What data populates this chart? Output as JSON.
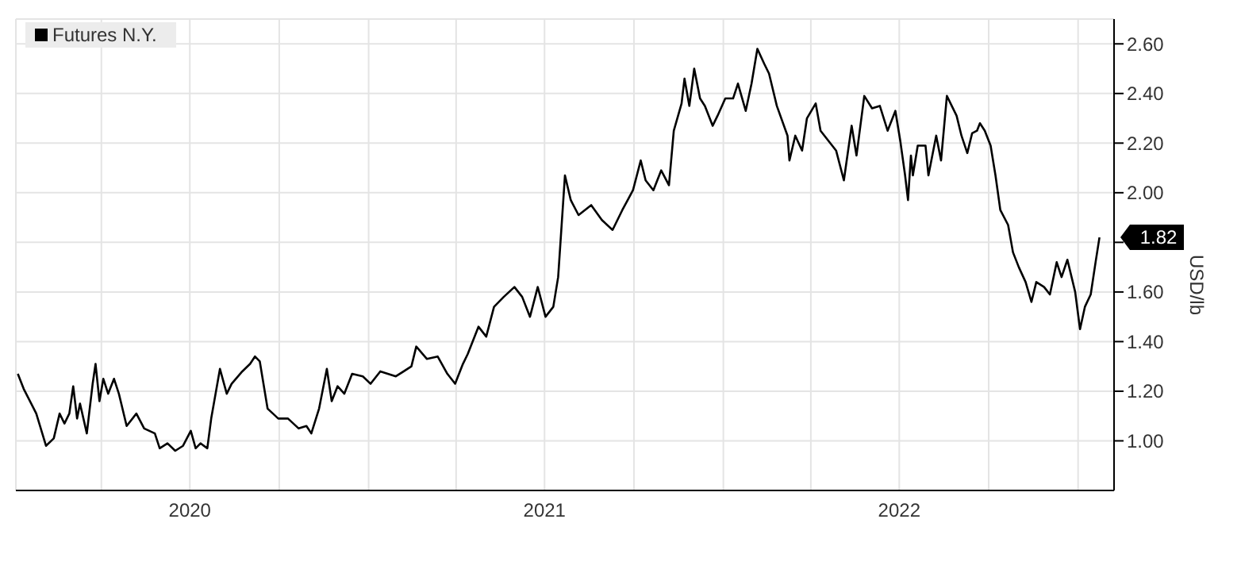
{
  "chart_data": {
    "type": "line",
    "ylabel": "USD/lb",
    "legend": "top left",
    "grid": true,
    "xlim": [
      "2020-01-04",
      "2023-02-07"
    ],
    "xticks": [
      {
        "value": "2020-04-01",
        "label": null
      },
      {
        "value": "2020-07-01",
        "label": "2020"
      },
      {
        "value": "2020-10-01",
        "label": null
      },
      {
        "value": "2021-01-01",
        "label": null
      },
      {
        "value": "2021-04-01",
        "label": null
      },
      {
        "value": "2021-07-01",
        "label": "2021"
      },
      {
        "value": "2021-10-01",
        "label": null
      },
      {
        "value": "2022-01-01",
        "label": null
      },
      {
        "value": "2022-04-01",
        "label": null
      },
      {
        "value": "2022-07-01",
        "label": "2022"
      },
      {
        "value": "2022-10-01",
        "label": null
      },
      {
        "value": "2023-01-01",
        "label": null
      }
    ],
    "ylim": [
      0.8,
      2.7
    ],
    "yticks": [
      {
        "value": 1,
        "label": "1.00"
      },
      {
        "value": 1.2,
        "label": "1.20"
      },
      {
        "value": 1.4,
        "label": "1.40"
      },
      {
        "value": 1.6,
        "label": "1.60"
      },
      {
        "value": 1.8,
        "label": null
      },
      {
        "value": 2,
        "label": "2.00"
      },
      {
        "value": 2.2,
        "label": "2.20"
      },
      {
        "value": 2.4,
        "label": "2.40"
      },
      {
        "value": 2.6,
        "label": "2.60"
      }
    ],
    "annotations": [
      {
        "text": "1.82",
        "x": "2023-01-23",
        "y": 1.82
      }
    ],
    "x": [
      "2020-01-06",
      "2020-01-12",
      "2020-01-25",
      "2020-02-04",
      "2020-02-12",
      "2020-02-18",
      "2020-02-23",
      "2020-02-28",
      "2020-03-03",
      "2020-03-07",
      "2020-03-10",
      "2020-03-17",
      "2020-03-23",
      "2020-03-26",
      "2020-03-30",
      "2020-04-03",
      "2020-04-08",
      "2020-04-14",
      "2020-04-19",
      "2020-04-27",
      "2020-05-07",
      "2020-05-15",
      "2020-05-26",
      "2020-05-31",
      "2020-06-08",
      "2020-06-16",
      "2020-06-24",
      "2020-07-02",
      "2020-07-07",
      "2020-07-12",
      "2020-07-19",
      "2020-07-23",
      "2020-08-01",
      "2020-08-08",
      "2020-08-13",
      "2020-08-24",
      "2020-09-01",
      "2020-09-06",
      "2020-09-11",
      "2020-09-19",
      "2020-09-30",
      "2020-10-10",
      "2020-10-21",
      "2020-10-29",
      "2020-11-03",
      "2020-11-11",
      "2020-11-19",
      "2020-11-24",
      "2020-11-30",
      "2020-12-07",
      "2020-12-15",
      "2020-12-26",
      "2021-01-03",
      "2021-01-13",
      "2021-01-29",
      "2021-02-14",
      "2021-02-19",
      "2021-03-02",
      "2021-03-13",
      "2021-03-23",
      "2021-03-31",
      "2021-04-08",
      "2021-04-13",
      "2021-04-24",
      "2021-05-02",
      "2021-05-10",
      "2021-05-20",
      "2021-05-31",
      "2021-06-08",
      "2021-06-16",
      "2021-06-24",
      "2021-07-02",
      "2021-07-10",
      "2021-07-15",
      "2021-07-22",
      "2021-07-28",
      "2021-08-05",
      "2021-08-18",
      "2021-08-29",
      "2021-09-09",
      "2021-09-19",
      "2021-09-30",
      "2021-10-08",
      "2021-10-13",
      "2021-10-21",
      "2021-10-29",
      "2021-11-06",
      "2021-11-11",
      "2021-11-19",
      "2021-11-22",
      "2021-11-27",
      "2021-12-02",
      "2021-12-08",
      "2021-12-13",
      "2021-12-21",
      "2021-12-26",
      "2022-01-03",
      "2022-01-11",
      "2022-01-16",
      "2022-01-24",
      "2022-01-30",
      "2022-02-05",
      "2022-02-12",
      "2022-02-17",
      "2022-02-25",
      "2022-03-08",
      "2022-03-10",
      "2022-03-16",
      "2022-03-23",
      "2022-03-28",
      "2022-04-06",
      "2022-04-11",
      "2022-04-19",
      "2022-04-27",
      "2022-05-05",
      "2022-05-13",
      "2022-05-18",
      "2022-05-26",
      "2022-06-03",
      "2022-06-11",
      "2022-06-19",
      "2022-06-27",
      "2022-07-02",
      "2022-07-07",
      "2022-07-10",
      "2022-07-13",
      "2022-07-15",
      "2022-07-20",
      "2022-07-28",
      "2022-07-31",
      "2022-08-08",
      "2022-08-13",
      "2022-08-19",
      "2022-08-29",
      "2022-09-03",
      "2022-09-09",
      "2022-09-14",
      "2022-09-19",
      "2022-09-22",
      "2022-09-27",
      "2022-10-03",
      "2022-10-08",
      "2022-10-13",
      "2022-10-21",
      "2022-10-26",
      "2022-11-01",
      "2022-11-08",
      "2022-11-14",
      "2022-11-19",
      "2022-11-27",
      "2022-12-03",
      "2022-12-10",
      "2022-12-15",
      "2022-12-21",
      "2022-12-29",
      "2023-01-03",
      "2023-01-08",
      "2023-01-14",
      "2023-01-19",
      "2023-01-23"
    ],
    "series": [
      {
        "name": "Futures N.Y.",
        "color": "#000000",
        "values": [
          1.27,
          1.21,
          1.11,
          0.98,
          1.01,
          1.11,
          1.07,
          1.11,
          1.22,
          1.09,
          1.15,
          1.03,
          1.23,
          1.31,
          1.16,
          1.25,
          1.19,
          1.25,
          1.19,
          1.06,
          1.11,
          1.05,
          1.03,
          0.97,
          0.99,
          0.96,
          0.98,
          1.04,
          0.97,
          0.99,
          0.97,
          1.09,
          1.29,
          1.19,
          1.23,
          1.28,
          1.31,
          1.34,
          1.32,
          1.13,
          1.09,
          1.09,
          1.05,
          1.06,
          1.03,
          1.13,
          1.29,
          1.16,
          1.22,
          1.19,
          1.27,
          1.26,
          1.23,
          1.28,
          1.26,
          1.3,
          1.38,
          1.33,
          1.34,
          1.27,
          1.23,
          1.31,
          1.35,
          1.46,
          1.42,
          1.54,
          1.58,
          1.62,
          1.58,
          1.5,
          1.62,
          1.5,
          1.54,
          1.66,
          2.07,
          1.97,
          1.91,
          1.95,
          1.89,
          1.85,
          1.93,
          2.01,
          2.13,
          2.05,
          2.01,
          2.09,
          2.03,
          2.25,
          2.36,
          2.46,
          2.35,
          2.5,
          2.38,
          2.35,
          2.27,
          2.31,
          2.38,
          2.38,
          2.44,
          2.33,
          2.44,
          2.58,
          2.52,
          2.48,
          2.35,
          2.23,
          2.13,
          2.23,
          2.17,
          2.3,
          2.36,
          2.25,
          2.21,
          2.17,
          2.05,
          2.27,
          2.15,
          2.39,
          2.34,
          2.35,
          2.25,
          2.33,
          2.21,
          2.07,
          1.97,
          2.15,
          2.07,
          2.19,
          2.19,
          2.07,
          2.23,
          2.13,
          2.39,
          2.31,
          2.23,
          2.16,
          2.24,
          2.25,
          2.28,
          2.25,
          2.19,
          2.07,
          1.93,
          1.87,
          1.76,
          1.7,
          1.64,
          1.56,
          1.64,
          1.62,
          1.59,
          1.72,
          1.66,
          1.73,
          1.6,
          1.45,
          1.54,
          1.59,
          1.72,
          1.82
        ]
      }
    ]
  }
}
